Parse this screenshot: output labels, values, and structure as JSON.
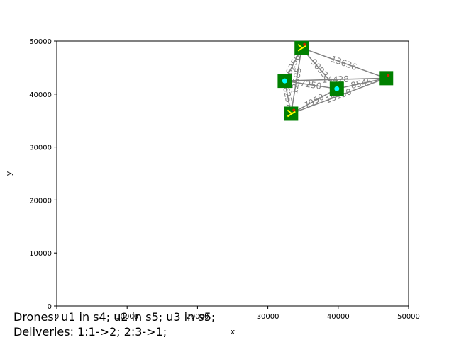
{
  "chart_data": {
    "type": "scatter",
    "title": "",
    "xlabel": "x",
    "ylabel": "y",
    "xlim": [
      0,
      50000
    ],
    "ylim": [
      0,
      50000
    ],
    "xticks": [
      0,
      10000,
      20000,
      30000,
      40000,
      50000
    ],
    "yticks": [
      0,
      10000,
      20000,
      30000,
      40000,
      50000
    ],
    "grid": false,
    "colors": {
      "node": "#008000",
      "edge": "#808080",
      "edge_label": "#808080",
      "drone": "#ffff00",
      "drone_alt": "#00ffff",
      "package": "#cc2200"
    },
    "nodes": [
      {
        "id": "n1",
        "x": 34800,
        "y": 48700,
        "drone": true
      },
      {
        "id": "n2",
        "x": 32400,
        "y": 42500,
        "station": true
      },
      {
        "id": "n3",
        "x": 39800,
        "y": 41000,
        "station": true
      },
      {
        "id": "n4",
        "x": 46800,
        "y": 43000,
        "package": true
      },
      {
        "id": "n5",
        "x": 33300,
        "y": 36300,
        "drone": true
      }
    ],
    "edges": [
      {
        "from": 0,
        "to": 1,
        "label": "6256"
      },
      {
        "from": 0,
        "to": 2,
        "label": "9093"
      },
      {
        "from": 0,
        "to": 3,
        "label": "13636"
      },
      {
        "from": 0,
        "to": 4,
        "label": "12585"
      },
      {
        "from": 1,
        "to": 2,
        "label": "7250"
      },
      {
        "from": 1,
        "to": 3,
        "label": "14428"
      },
      {
        "from": 1,
        "to": 4,
        "label": "6257"
      },
      {
        "from": 2,
        "to": 3,
        "label": "8545"
      },
      {
        "from": 2,
        "to": 4,
        "label": "7950"
      },
      {
        "from": 3,
        "to": 4,
        "label": "15150"
      }
    ]
  },
  "caption": {
    "line1": "Drones: u1 in s4; u2 in s5; u3 in s5;",
    "line2": "Deliveries: 1:1->2; 2:3->1;"
  }
}
